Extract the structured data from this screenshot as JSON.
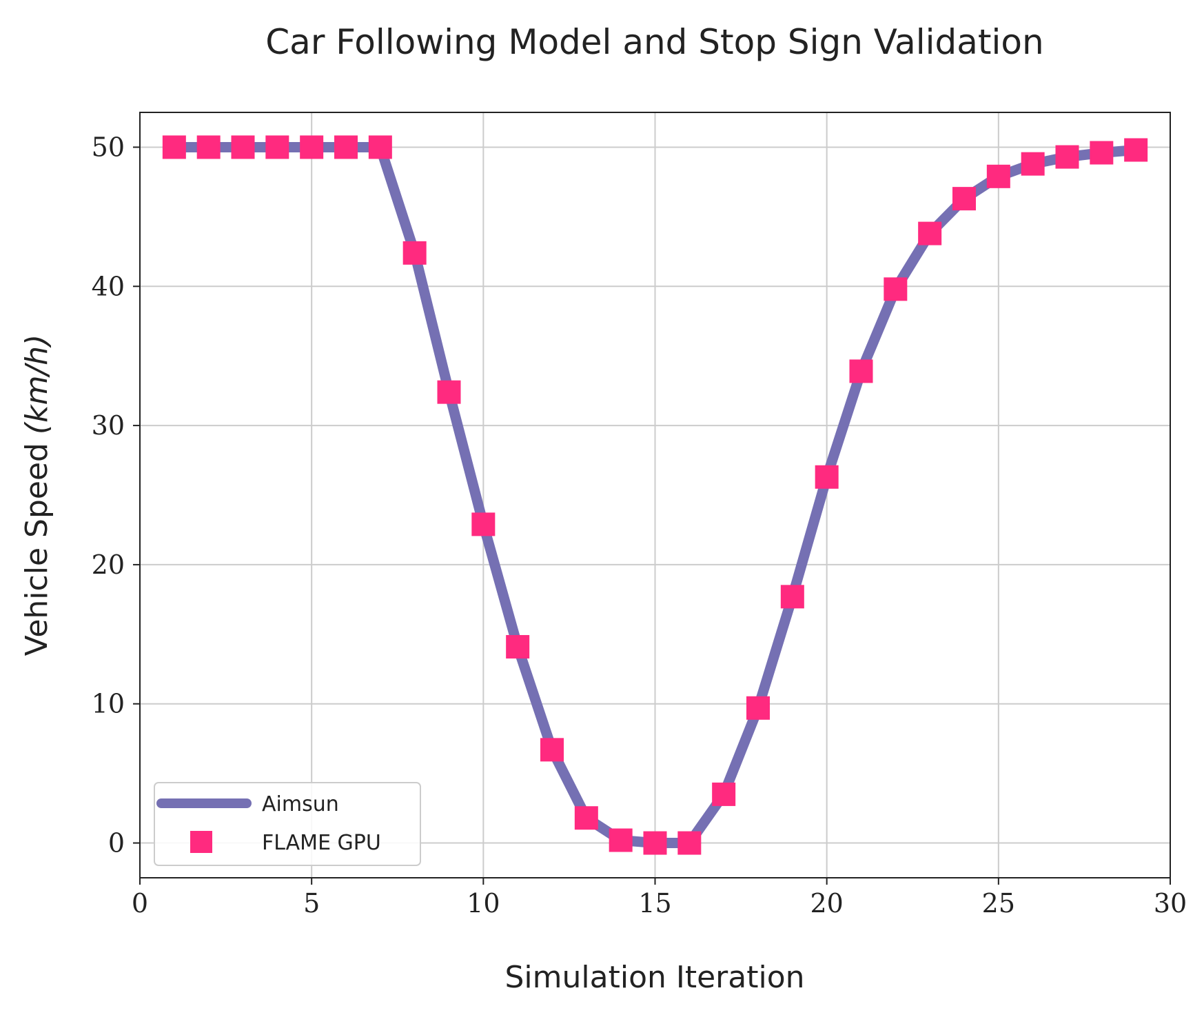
{
  "chart_data": {
    "type": "line",
    "title": "Car Following Model and Stop Sign Validation",
    "xlabel": "Simulation Iteration",
    "ylabel": "Vehicle Speed",
    "ylabel_unit": "(km/h)",
    "xlim": [
      0,
      30
    ],
    "ylim": [
      -2.5,
      52.5
    ],
    "xticks": [
      0,
      5,
      10,
      15,
      20,
      25,
      30
    ],
    "yticks": [
      0,
      10,
      20,
      30,
      40,
      50
    ],
    "grid": true,
    "legend_position": "lower-left",
    "x": [
      1,
      2,
      3,
      4,
      5,
      6,
      7,
      8,
      9,
      10,
      11,
      12,
      13,
      14,
      15,
      16,
      17,
      18,
      19,
      20,
      21,
      22,
      23,
      24,
      25,
      26,
      27,
      28,
      29
    ],
    "series": [
      {
        "name": "Aimsun",
        "style": "line",
        "color": "#7570b3",
        "values": [
          50,
          50,
          50,
          50,
          50,
          50,
          50,
          42.4,
          32.4,
          22.9,
          14.1,
          6.7,
          1.8,
          0.2,
          0,
          0,
          3.5,
          9.7,
          17.7,
          26.3,
          33.9,
          39.8,
          43.8,
          46.3,
          47.9,
          48.8,
          49.3,
          49.6,
          49.8
        ]
      },
      {
        "name": "FLAME GPU",
        "style": "marker",
        "marker": "square",
        "color": "#ff2a7f",
        "values": [
          50,
          50,
          50,
          50,
          50,
          50,
          50,
          42.4,
          32.4,
          22.9,
          14.1,
          6.7,
          1.8,
          0.2,
          0,
          0,
          3.5,
          9.7,
          17.7,
          26.3,
          33.9,
          39.8,
          43.8,
          46.3,
          47.9,
          48.8,
          49.3,
          49.6,
          49.8
        ]
      }
    ]
  }
}
